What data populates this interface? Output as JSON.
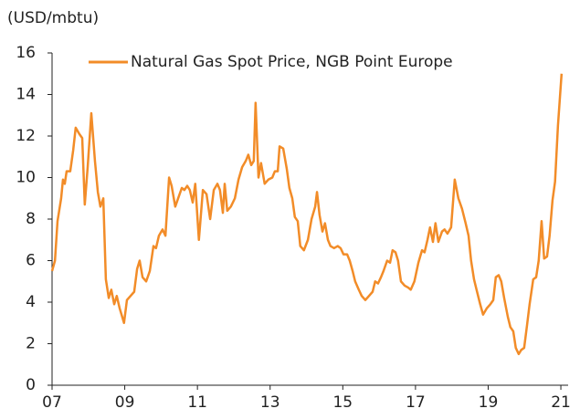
{
  "chart_data": {
    "type": "line",
    "y_axis_label": "(USD/mbtu)",
    "x": [
      2007.0,
      2007.08,
      2007.15,
      2007.25,
      2007.3,
      2007.35,
      2007.4,
      2007.5,
      2007.58,
      2007.65,
      2007.75,
      2007.83,
      2007.9,
      2007.98,
      2008.08,
      2008.18,
      2008.26,
      2008.33,
      2008.41,
      2008.48,
      2008.56,
      2008.63,
      2008.71,
      2008.78,
      2008.86,
      2008.98,
      2009.06,
      2009.16,
      2009.26,
      2009.34,
      2009.41,
      2009.49,
      2009.59,
      2009.69,
      2009.79,
      2009.86,
      2009.94,
      2010.04,
      2010.12,
      2010.22,
      2010.29,
      2010.39,
      2010.49,
      2010.57,
      2010.64,
      2010.72,
      2010.79,
      2010.87,
      2010.94,
      2011.04,
      2011.15,
      2011.25,
      2011.35,
      2011.45,
      2011.55,
      2011.62,
      2011.7,
      2011.75,
      2011.82,
      2011.92,
      2012.03,
      2012.13,
      2012.23,
      2012.33,
      2012.4,
      2012.48,
      2012.55,
      2012.6,
      2012.68,
      2012.75,
      2012.85,
      2012.95,
      2013.06,
      2013.13,
      2013.21,
      2013.26,
      2013.36,
      2013.46,
      2013.53,
      2013.61,
      2013.68,
      2013.76,
      2013.83,
      2013.93,
      2014.04,
      2014.14,
      2014.24,
      2014.29,
      2014.36,
      2014.44,
      2014.51,
      2014.59,
      2014.66,
      2014.76,
      2014.86,
      2014.94,
      2015.02,
      2015.12,
      2015.19,
      2015.27,
      2015.34,
      2015.44,
      2015.52,
      2015.62,
      2015.72,
      2015.82,
      2015.89,
      2015.97,
      2016.05,
      2016.12,
      2016.22,
      2016.3,
      2016.37,
      2016.45,
      2016.52,
      2016.6,
      2016.7,
      2016.8,
      2016.87,
      2016.97,
      2017.08,
      2017.18,
      2017.25,
      2017.33,
      2017.4,
      2017.48,
      2017.55,
      2017.63,
      2017.73,
      2017.8,
      2017.88,
      2017.98,
      2018.08,
      2018.18,
      2018.28,
      2018.38,
      2018.46,
      2018.53,
      2018.61,
      2018.68,
      2018.78,
      2018.86,
      2018.96,
      2019.06,
      2019.14,
      2019.21,
      2019.29,
      2019.36,
      2019.44,
      2019.54,
      2019.61,
      2019.69,
      2019.76,
      2019.84,
      2019.91,
      2019.99,
      2020.07,
      2020.14,
      2020.24,
      2020.32,
      2020.39,
      2020.47,
      2020.54,
      2020.62,
      2020.69,
      2020.77,
      2020.84,
      2020.92,
      2021.02
    ],
    "series": [
      {
        "name": "Natural Gas Spot Price, NGB Point Europe",
        "color": "#f28c28",
        "values": [
          5.5,
          6.0,
          7.9,
          9.0,
          9.9,
          9.7,
          10.3,
          10.3,
          11.3,
          12.4,
          12.1,
          11.9,
          8.7,
          10.5,
          13.1,
          10.8,
          9.3,
          8.6,
          9.0,
          5.1,
          4.2,
          4.6,
          3.9,
          4.3,
          3.7,
          3.0,
          4.1,
          4.3,
          4.5,
          5.6,
          6.0,
          5.2,
          5.0,
          5.5,
          6.7,
          6.6,
          7.2,
          7.5,
          7.2,
          10.0,
          9.6,
          8.6,
          9.1,
          9.5,
          9.4,
          9.6,
          9.4,
          8.8,
          9.7,
          7.0,
          9.4,
          9.2,
          8.0,
          9.4,
          9.7,
          9.4,
          8.3,
          9.7,
          8.4,
          8.6,
          9.0,
          9.9,
          10.5,
          10.8,
          11.1,
          10.6,
          10.8,
          13.6,
          10.0,
          10.7,
          9.7,
          9.9,
          10.0,
          10.3,
          10.3,
          11.5,
          11.4,
          10.4,
          9.5,
          9.0,
          8.1,
          7.9,
          6.7,
          6.5,
          7.0,
          8.0,
          8.6,
          9.3,
          8.2,
          7.4,
          7.8,
          7.0,
          6.7,
          6.6,
          6.7,
          6.6,
          6.3,
          6.3,
          6.0,
          5.5,
          5.0,
          4.6,
          4.3,
          4.1,
          4.3,
          4.5,
          5.0,
          4.9,
          5.2,
          5.5,
          6.0,
          5.9,
          6.5,
          6.4,
          6.0,
          5.0,
          4.8,
          4.7,
          4.6,
          5.0,
          5.9,
          6.5,
          6.4,
          7.0,
          7.6,
          6.9,
          7.8,
          6.9,
          7.4,
          7.5,
          7.3,
          7.6,
          9.9,
          9.0,
          8.5,
          7.8,
          7.2,
          6.0,
          5.1,
          4.6,
          3.9,
          3.4,
          3.7,
          3.9,
          4.1,
          5.2,
          5.3,
          5.0,
          4.2,
          3.3,
          2.8,
          2.6,
          1.8,
          1.5,
          1.7,
          1.8,
          2.9,
          3.9,
          5.1,
          5.2,
          6.0,
          7.9,
          6.1,
          6.2,
          7.2,
          8.9,
          9.8,
          12.5,
          15.0
        ]
      }
    ],
    "xlim": [
      2007,
      2021.2
    ],
    "xticks": [
      {
        "value": 2007,
        "label": "07"
      },
      {
        "value": 2009,
        "label": "09"
      },
      {
        "value": 2011,
        "label": "11"
      },
      {
        "value": 2013,
        "label": "13"
      },
      {
        "value": 2015,
        "label": "15"
      },
      {
        "value": 2017,
        "label": "17"
      },
      {
        "value": 2019,
        "label": "19"
      },
      {
        "value": 2021,
        "label": "21"
      }
    ],
    "ylim": [
      0,
      16
    ],
    "yticks": [
      0,
      2,
      4,
      6,
      8,
      10,
      12,
      14,
      16
    ],
    "legend": "top"
  }
}
